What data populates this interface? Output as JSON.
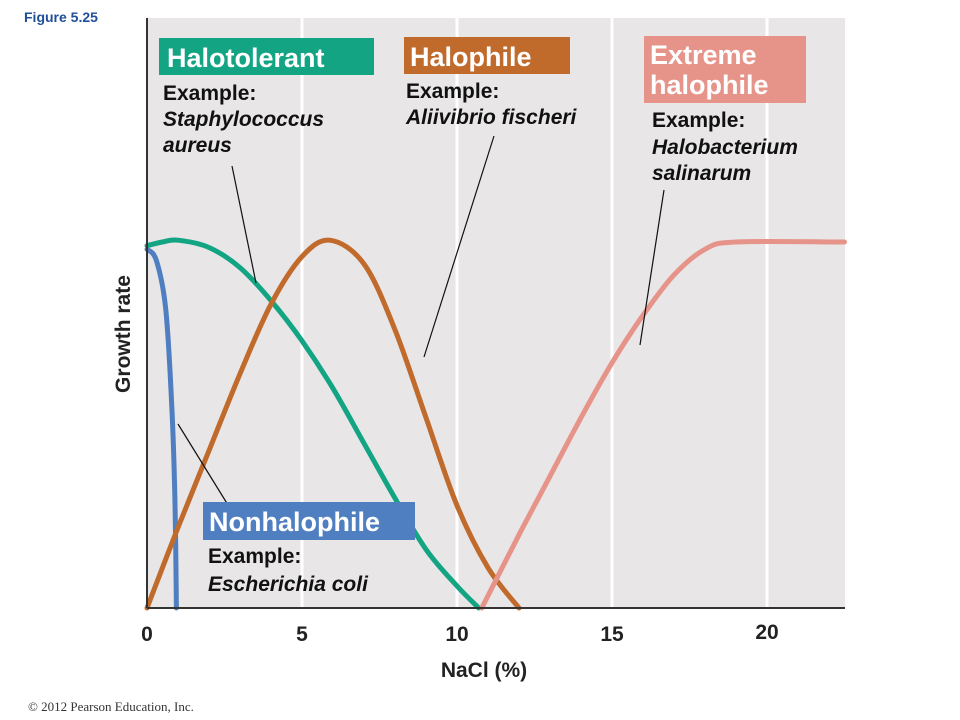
{
  "figure_label": "Figure 5.25",
  "copyright": "© 2012 Pearson Education, Inc.",
  "colors": {
    "background": "#e8e6e7",
    "nonhalophile": "#4f7fc0",
    "halotolerant": "#13a583",
    "halophile": "#c06a2c",
    "extreme_halophile": "#e6948a"
  },
  "chart_data": {
    "type": "line",
    "title": "",
    "xlabel": "NaCl (%)",
    "ylabel": "Growth rate",
    "xlim": [
      0,
      22.5
    ],
    "ylim": [
      0,
      1
    ],
    "x_ticks": [
      0,
      5,
      10,
      15,
      20
    ],
    "x_tick_labels": [
      "0",
      "5",
      "10",
      "15",
      "20"
    ],
    "gridlines_x": [
      5,
      10,
      15,
      20
    ],
    "series": [
      {
        "name": "Nonhalophile",
        "key": "nonhalophile",
        "example_label": "Example:",
        "example_species": [
          "Escherichia coli"
        ],
        "points": [
          [
            0,
            0.98
          ],
          [
            0.3,
            0.95
          ],
          [
            0.6,
            0.82
          ],
          [
            0.8,
            0.55
          ],
          [
            0.9,
            0.3
          ],
          [
            0.95,
            0
          ]
        ]
      },
      {
        "name": "Halotolerant",
        "key": "halotolerant",
        "example_label": "Example:",
        "example_species": [
          "Staphylococcus",
          "aureus"
        ],
        "points": [
          [
            0,
            0.99
          ],
          [
            0.5,
            1.0
          ],
          [
            1.0,
            1.005
          ],
          [
            2.0,
            0.985
          ],
          [
            3.0,
            0.93
          ],
          [
            4.0,
            0.84
          ],
          [
            5.0,
            0.73
          ],
          [
            6.0,
            0.6
          ],
          [
            7.0,
            0.45
          ],
          [
            8.0,
            0.3
          ],
          [
            9.0,
            0.16
          ],
          [
            10.0,
            0.06
          ],
          [
            10.7,
            0
          ]
        ]
      },
      {
        "name": "Halophile",
        "key": "halophile",
        "example_label": "Example:",
        "example_species": [
          "Aliivibrio fischeri"
        ],
        "points": [
          [
            0,
            0
          ],
          [
            1.0,
            0.22
          ],
          [
            2.0,
            0.43
          ],
          [
            3.0,
            0.64
          ],
          [
            4.0,
            0.83
          ],
          [
            5.0,
            0.96
          ],
          [
            5.9,
            1.005
          ],
          [
            7.0,
            0.94
          ],
          [
            8.0,
            0.76
          ],
          [
            9.0,
            0.52
          ],
          [
            10.0,
            0.28
          ],
          [
            11.0,
            0.11
          ],
          [
            12.0,
            0
          ]
        ]
      },
      {
        "name": "Extreme halophile",
        "key": "extreme_halophile",
        "example_label": "Example:",
        "example_species": [
          "Halobacterium",
          "salinarum"
        ],
        "points": [
          [
            10.8,
            0
          ],
          [
            12.0,
            0.2
          ],
          [
            13.0,
            0.36
          ],
          [
            14.0,
            0.52
          ],
          [
            15.0,
            0.67
          ],
          [
            16.0,
            0.8
          ],
          [
            17.0,
            0.91
          ],
          [
            18.0,
            0.98
          ],
          [
            19.0,
            1.0
          ],
          [
            22.5,
            1.0
          ]
        ]
      }
    ]
  },
  "labels": {
    "halotolerant": {
      "box": "Halotolerant",
      "example": "Example:",
      "species_line1": "Staphylococcus",
      "species_line2": "aureus"
    },
    "halophile": {
      "box": "Halophile",
      "example": "Example:",
      "species_line1": "Aliivibrio fischeri"
    },
    "extreme_halophile": {
      "box_line1": "Extreme",
      "box_line2": "halophile",
      "example": "Example:",
      "species_line1": "Halobacterium",
      "species_line2": "salinarum"
    },
    "nonhalophile": {
      "box": "Nonhalophile",
      "example": "Example:",
      "species_line1": "Escherichia coli"
    }
  }
}
